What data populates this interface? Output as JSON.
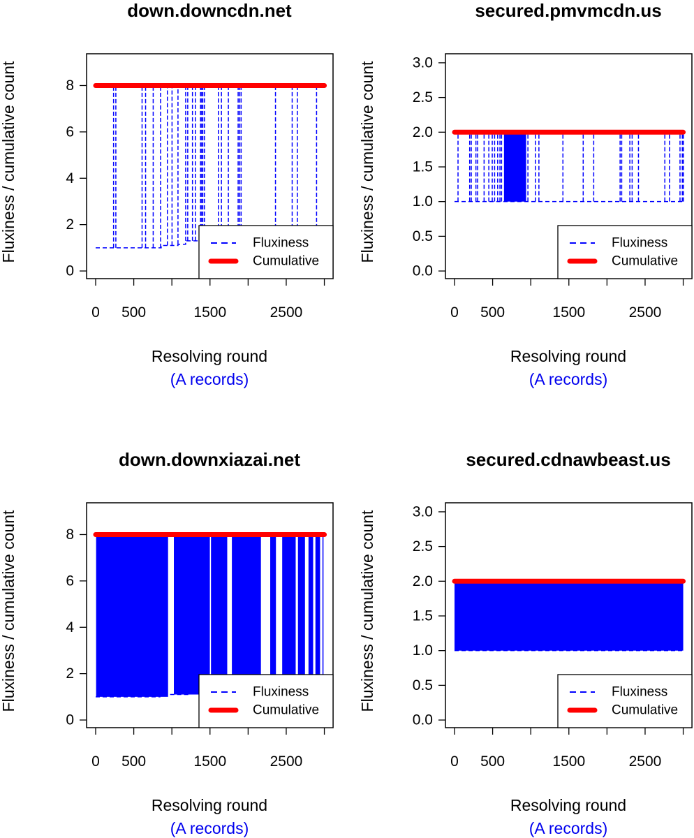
{
  "colors": {
    "fluxiness": "#0000ff",
    "cumulative": "#ff0000",
    "subtitle": "#0000ee"
  },
  "chart_data": [
    {
      "type": "line",
      "title": "down.downcdn.net",
      "xlabel": "Resolving round",
      "xlabel_sub": "(A records)",
      "ylabel": "Fluxiness / cumulative count",
      "xlim": [
        -119,
        3114
      ],
      "ylim": [
        -0.33,
        9.37
      ],
      "xticks": [
        0,
        500,
        1000,
        1500,
        2000,
        2500,
        3000
      ],
      "xtick_labels": [
        "0",
        "500",
        "",
        "1500",
        "",
        "2500",
        ""
      ],
      "yticks": [
        0,
        2,
        4,
        6,
        8
      ],
      "ytick_labels": [
        "0",
        "2",
        "4",
        "6",
        "8"
      ],
      "legend": {
        "placement": "bottom-right",
        "entries": [
          "Fluxiness",
          "Cumulative"
        ]
      },
      "cumulative": {
        "x": [
          0,
          3000
        ],
        "y": 8
      },
      "fluxiness": {
        "peak": 8,
        "baseline": [
          [
            0,
            1
          ],
          [
            860,
            1
          ],
          [
            860,
            1.1
          ],
          [
            1080,
            1.1
          ],
          [
            1080,
            1.15
          ],
          [
            1180,
            1.15
          ],
          [
            1180,
            1.3
          ],
          [
            3000,
            1.3
          ]
        ],
        "spikes": [
          235,
          265,
          609,
          655,
          755,
          852,
          941,
          1002,
          1080,
          1181,
          1208,
          1270,
          1309,
          1376,
          1391,
          1406,
          1427,
          1610,
          1650,
          1741,
          1869,
          1887,
          1908,
          2359,
          2578,
          2646,
          2898
        ],
        "filled_ranges": []
      }
    },
    {
      "type": "line",
      "title": "secured.pmvmcdn.us",
      "xlabel": "Resolving round",
      "xlabel_sub": "(A records)",
      "ylabel": "Fluxiness / cumulative count",
      "xlim": [
        -119,
        3114
      ],
      "ylim": [
        -0.11,
        3.13
      ],
      "xticks": [
        0,
        500,
        1000,
        1500,
        2000,
        2500,
        3000
      ],
      "xtick_labels": [
        "0",
        "500",
        "",
        "1500",
        "",
        "2500",
        ""
      ],
      "yticks": [
        0,
        0.5,
        1,
        1.5,
        2,
        2.5,
        3
      ],
      "ytick_labels": [
        "0.0",
        "0.5",
        "1.0",
        "1.5",
        "2.0",
        "2.5",
        "3.0"
      ],
      "legend": {
        "placement": "bottom-right",
        "entries": [
          "Fluxiness",
          "Cumulative"
        ]
      },
      "cumulative": {
        "x": [
          0,
          3000
        ],
        "y": 2
      },
      "fluxiness": {
        "peak": 2,
        "baseline": [
          [
            0,
            1
          ],
          [
            3000,
            1
          ]
        ],
        "spikes": [
          46,
          199,
          220,
          281,
          303,
          388,
          450,
          495,
          526,
          566,
          596,
          617,
          963,
          1061,
          1107,
          1422,
          1688,
          1826,
          2172,
          2193,
          2300,
          2330,
          2413,
          2759,
          2820,
          2958,
          2988,
          3002
        ],
        "filled_ranges": [
          [
            649,
            939
          ]
        ]
      }
    },
    {
      "type": "line",
      "title": "down.downxiazai.net",
      "xlabel": "Resolving round",
      "xlabel_sub": "(A records)",
      "ylabel": "Fluxiness / cumulative count",
      "xlim": [
        -119,
        3114
      ],
      "ylim": [
        -0.33,
        9.37
      ],
      "xticks": [
        0,
        500,
        1000,
        1500,
        2000,
        2500,
        3000
      ],
      "xtick_labels": [
        "0",
        "500",
        "",
        "1500",
        "",
        "2500",
        ""
      ],
      "yticks": [
        0,
        2,
        4,
        6,
        8
      ],
      "ytick_labels": [
        "0",
        "2",
        "4",
        "6",
        "8"
      ],
      "legend": {
        "placement": "bottom-right",
        "entries": [
          "Fluxiness",
          "Cumulative"
        ]
      },
      "cumulative": {
        "x": [
          0,
          3000
        ],
        "y": 8
      },
      "fluxiness": {
        "peak": 8,
        "baseline": [
          [
            0,
            1
          ],
          [
            843,
            1
          ],
          [
            843,
            1.1
          ],
          [
            1208,
            1.1
          ],
          [
            1208,
            1.3
          ],
          [
            3000,
            1.3
          ]
        ],
        "spikes": [],
        "filled_ranges": [
          [
            6,
            950
          ],
          [
            1026,
            1498
          ],
          [
            1513,
            1726
          ],
          [
            1787,
            2168
          ],
          [
            2290,
            2365
          ],
          [
            2447,
            2624
          ],
          [
            2654,
            2746
          ],
          [
            2792,
            2853
          ],
          [
            2883,
            2944
          ],
          [
            2975,
            2989
          ]
        ]
      }
    },
    {
      "type": "line",
      "title": "secured.cdnawbeast.us",
      "xlabel": "Resolving round",
      "xlabel_sub": "(A records)",
      "ylabel": "Fluxiness / cumulative count",
      "xlim": [
        -119,
        3114
      ],
      "ylim": [
        -0.11,
        3.13
      ],
      "xticks": [
        0,
        500,
        1000,
        1500,
        2000,
        2500,
        3000
      ],
      "xtick_labels": [
        "0",
        "500",
        "",
        "1500",
        "",
        "2500",
        ""
      ],
      "yticks": [
        0,
        0.5,
        1,
        1.5,
        2,
        2.5,
        3
      ],
      "ytick_labels": [
        "0.0",
        "0.5",
        "1.0",
        "1.5",
        "2.0",
        "2.5",
        "3.0"
      ],
      "legend": {
        "placement": "bottom-right",
        "entries": [
          "Fluxiness",
          "Cumulative"
        ]
      },
      "cumulative": {
        "x": [
          0,
          3000
        ],
        "y": 2
      },
      "fluxiness": {
        "peak": 2,
        "baseline": [
          [
            0,
            1
          ],
          [
            3000,
            1
          ]
        ],
        "spikes": [],
        "filled_ranges": [
          [
            0,
            3000
          ]
        ]
      }
    }
  ]
}
